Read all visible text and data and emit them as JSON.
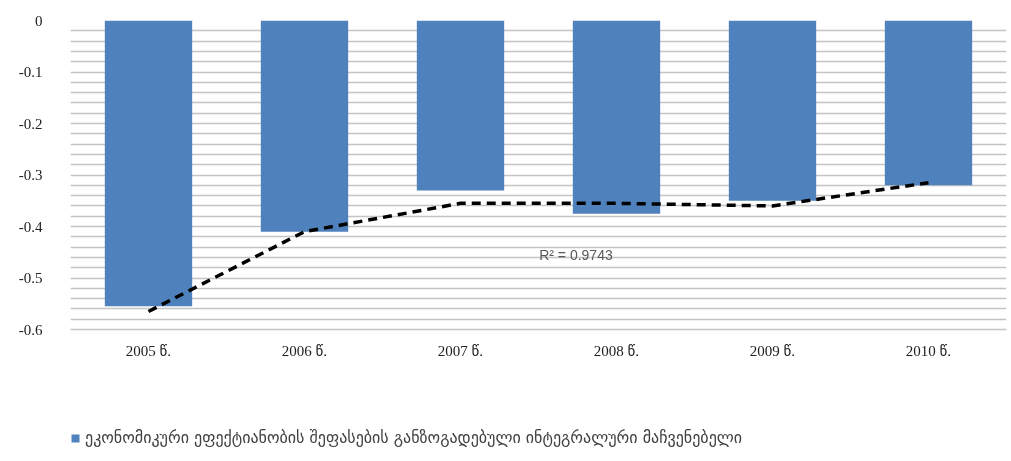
{
  "chart_data": {
    "type": "bar",
    "categories": [
      "2005 წ.",
      "2006 წ.",
      "2007 წ.",
      "2008 წ.",
      "2009 წ.",
      "2010 წ."
    ],
    "series": [
      {
        "name": "ეკონომიკური ეფექტიანობის შეფასების განზოგადებული ინტეგრალური მაჩვენებელი",
        "color": "#4f81bd",
        "values": [
          -0.555,
          -0.41,
          -0.33,
          -0.375,
          -0.35,
          -0.32
        ]
      },
      {
        "type": "line",
        "color": "#000000",
        "line_style": "dashed",
        "values": [
          -0.565,
          -0.41,
          -0.355,
          -0.355,
          -0.36,
          -0.315
        ]
      }
    ],
    "ylim": [
      -0.6,
      0
    ],
    "yticks": [
      0,
      {
        "value": -0.02,
        "label": null
      },
      {
        "value": -0.04,
        "label": null
      },
      {
        "value": -0.06,
        "label": null
      },
      {
        "value": -0.08,
        "label": null
      },
      -0.1,
      {
        "value": -0.12,
        "label": null
      },
      {
        "value": -0.14,
        "label": null
      },
      {
        "value": -0.16,
        "label": null
      },
      {
        "value": -0.18,
        "label": null
      },
      -0.2,
      {
        "value": -0.22,
        "label": null
      },
      {
        "value": -0.24,
        "label": null
      },
      {
        "value": -0.26,
        "label": null
      },
      {
        "value": -0.28,
        "label": null
      },
      -0.3,
      {
        "value": -0.32,
        "label": null
      },
      {
        "value": -0.34,
        "label": null
      },
      {
        "value": -0.36,
        "label": null
      },
      {
        "value": -0.38,
        "label": null
      },
      -0.4,
      {
        "value": -0.42,
        "label": null
      },
      {
        "value": -0.44,
        "label": null
      },
      {
        "value": -0.46,
        "label": null
      },
      {
        "value": -0.48,
        "label": null
      },
      -0.5,
      {
        "value": -0.52,
        "label": null
      },
      {
        "value": -0.54,
        "label": null
      },
      {
        "value": -0.56,
        "label": null
      },
      {
        "value": -0.58,
        "label": null
      },
      -0.6
    ],
    "grid": "y",
    "legend": "bottom",
    "annotations": [
      "R² = 0.9743"
    ]
  }
}
